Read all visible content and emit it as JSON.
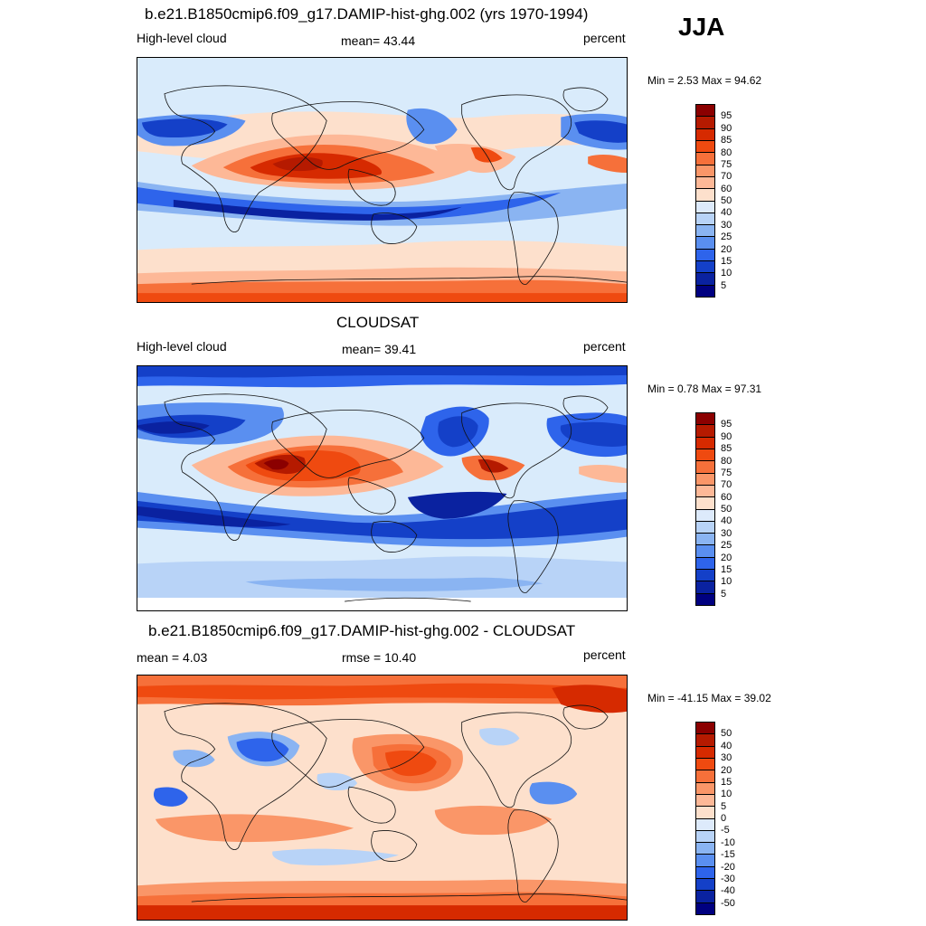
{
  "season": "JJA",
  "panels": [
    {
      "title": "b.e21.B1850cmip6.f09_g17.DAMIP-hist-ghg.002 (yrs 1970-1994)",
      "left_label": "High-level cloud",
      "center_label": "mean=  43.44",
      "right_label": "percent",
      "minmax": "Min =   2.53 Max =  94.62"
    },
    {
      "title": "CLOUDSAT",
      "left_label": "High-level cloud",
      "center_label": "mean=  39.41",
      "right_label": "percent",
      "minmax": "Min =   0.78 Max =  97.31"
    },
    {
      "title": "b.e21.B1850cmip6.f09_g17.DAMIP-hist-ghg.002 - CLOUDSAT",
      "left_label": "mean =   4.03",
      "center_label": "rmse =  10.40",
      "right_label": "percent",
      "minmax": "Min = -41.15 Max =  39.02"
    }
  ],
  "colorbars": {
    "absolute": {
      "labels": [
        "95",
        "90",
        "85",
        "80",
        "75",
        "70",
        "60",
        "50",
        "40",
        "30",
        "25",
        "20",
        "15",
        "10",
        "5"
      ],
      "colors": [
        "#8b0000",
        "#b51a00",
        "#d62a00",
        "#ef4a10",
        "#f6703a",
        "#fa9668",
        "#fdb897",
        "#fde0cc",
        "#ddeafb",
        "#b8d3f7",
        "#8ab4f2",
        "#5a8ff0",
        "#2e64eb",
        "#1440c8",
        "#0a22a0",
        "#000080"
      ]
    },
    "difference": {
      "labels": [
        "50",
        "40",
        "30",
        "20",
        "15",
        "10",
        "5",
        "0",
        "-5",
        "-10",
        "-15",
        "-20",
        "-30",
        "-40",
        "-50"
      ],
      "colors": [
        "#8b0000",
        "#b51a00",
        "#d62a00",
        "#ef4a10",
        "#f6703a",
        "#fa9668",
        "#fdb897",
        "#fde0cc",
        "#ddeafb",
        "#b8d3f7",
        "#8ab4f2",
        "#5a8ff0",
        "#2e64eb",
        "#1440c8",
        "#0a22a0",
        "#000080"
      ]
    }
  }
}
